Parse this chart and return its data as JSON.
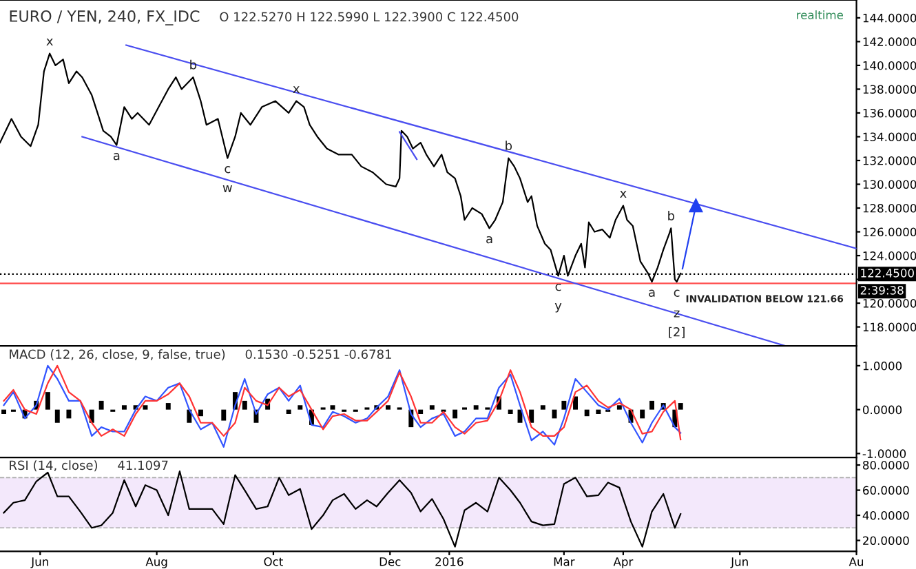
{
  "chart_data": [
    {
      "type": "line",
      "title": "EURO / YEN, 240, FX_IDC",
      "subtitle": "O 122.5270 H 122.5990 L 122.3900 C 122.4500",
      "xlim": [
        "2015-05-11",
        "2016-08-01"
      ],
      "ylim": [
        116.4,
        145.5
      ],
      "yticks": [
        {
          "value": 118,
          "label": "118.0000"
        },
        {
          "value": 120,
          "label": "120.0000"
        },
        {
          "value": 122,
          "label": null
        },
        {
          "value": 124,
          "label": "124.0000"
        },
        {
          "value": 126,
          "label": "126.0000"
        },
        {
          "value": 128,
          "label": "128.0000"
        },
        {
          "value": 130,
          "label": "130.0000"
        },
        {
          "value": 132,
          "label": "132.0000"
        },
        {
          "value": 134,
          "label": "134.0000"
        },
        {
          "value": 136,
          "label": "136.0000"
        },
        {
          "value": 138,
          "label": "138.0000"
        },
        {
          "value": 140,
          "label": "140.0000"
        },
        {
          "value": 142,
          "label": "142.0000"
        },
        {
          "value": 144,
          "label": "144.0000"
        }
      ],
      "tick_labels": "y",
      "grid": false,
      "legend": false,
      "series": [
        {
          "color": "#000000",
          "x": [
            "2015-05-11",
            "2015-05-17",
            "2015-05-22",
            "2015-05-27",
            "2015-05-31",
            "2015-06-03",
            "2015-06-06",
            "2015-06-09",
            "2015-06-13",
            "2015-06-16",
            "2015-06-20",
            "2015-06-23",
            "2015-06-28",
            "2015-07-01",
            "2015-07-04",
            "2015-07-08",
            "2015-07-11",
            "2015-07-15",
            "2015-07-19",
            "2015-07-22",
            "2015-07-28",
            "2015-08-02",
            "2015-08-07",
            "2015-08-11",
            "2015-08-14",
            "2015-08-20",
            "2015-08-24",
            "2015-08-27",
            "2015-09-02",
            "2015-09-07",
            "2015-09-11",
            "2015-09-14",
            "2015-09-19",
            "2015-09-25",
            "2015-10-02",
            "2015-10-09",
            "2015-10-13",
            "2015-10-17",
            "2015-10-20",
            "2015-10-24",
            "2015-10-29",
            "2015-11-04",
            "2015-11-11",
            "2015-11-16",
            "2015-11-22",
            "2015-11-29",
            "2015-12-04",
            "2015-12-06",
            "2015-12-07",
            "2015-12-10",
            "2015-12-13",
            "2015-12-17",
            "2015-12-20",
            "2015-12-24",
            "2015-12-28",
            "2015-12-31",
            "2016-01-04",
            "2016-01-07",
            "2016-01-09",
            "2016-01-13",
            "2016-01-18",
            "2016-01-22",
            "2016-01-25",
            "2016-01-29",
            "2016-02-01",
            "2016-02-04",
            "2016-02-07",
            "2016-02-11",
            "2016-02-13",
            "2016-02-16",
            "2016-02-20",
            "2016-02-23",
            "2016-02-27",
            "2016-03-01",
            "2016-03-03",
            "2016-03-07",
            "2016-03-10",
            "2016-03-12",
            "2016-03-14",
            "2016-03-17",
            "2016-03-21",
            "2016-03-25",
            "2016-03-28",
            "2016-04-01",
            "2016-04-03",
            "2016-04-06",
            "2016-04-10",
            "2016-04-14",
            "2016-04-16",
            "2016-04-19",
            "2016-04-22",
            "2016-04-25",
            "2016-04-26",
            "2016-04-28",
            "2016-04-29",
            "2016-05-01"
          ],
          "values": [
            133.5,
            135.5,
            134,
            133.2,
            135,
            139.5,
            141,
            140,
            140.5,
            138.5,
            139.5,
            139,
            137.5,
            136,
            134.5,
            134,
            133.3,
            136.5,
            135.5,
            136,
            135,
            136.5,
            138,
            139,
            138,
            139,
            137,
            135,
            135.5,
            132.2,
            134,
            136,
            135,
            136.5,
            137,
            136,
            137,
            136.5,
            135,
            134,
            133,
            132.5,
            132.5,
            131.5,
            131,
            130,
            129.8,
            130.5,
            134.5,
            134,
            133,
            133.5,
            132.5,
            131.5,
            132.5,
            131,
            130.5,
            129,
            127,
            128,
            127.5,
            126.3,
            127,
            128.5,
            132.2,
            131.5,
            130.5,
            128.5,
            129,
            126.5,
            125,
            124.5,
            122.3,
            124,
            122.3,
            124,
            125,
            123,
            126.8,
            126,
            126.2,
            125.5,
            127,
            128.2,
            127,
            126.5,
            123.5,
            122.5,
            121.8,
            123,
            124.5,
            125.8,
            126.3,
            122,
            121.8,
            122.5
          ]
        },
        {
          "color": "#4a4ef0",
          "x": [
            "2015-07-16",
            "2016-08-01"
          ],
          "values": [
            141.7,
            124.6
          ]
        },
        {
          "color": "#4a4ef0",
          "x": [
            "2015-06-23",
            "2016-06-25"
          ],
          "values": [
            134.0,
            116.4
          ]
        },
        {
          "color": "#4a4ef0",
          "x": [
            "2015-12-06",
            "2015-12-15"
          ],
          "values": [
            134.4,
            132.1
          ]
        },
        {
          "color": "#2040f0",
          "x": [
            "2016-05-02",
            "2016-05-09"
          ],
          "values": [
            122.9,
            128.2
          ],
          "marker": "triangle"
        }
      ],
      "ref_lines": [
        {
          "axis": "y",
          "value": 122.45,
          "label": "122.4500",
          "color": "#000000",
          "line_style": "dotted"
        },
        {
          "axis": "y",
          "value": 121.66,
          "label": "INVALIDATION BELOW 121.66",
          "color": "#ff5050",
          "line_style": "solid"
        }
      ],
      "annotations": [
        "realtime",
        "2:39:38",
        {
          "text": "x",
          "x": "2015-06-06",
          "y": 141
        },
        {
          "text": "b",
          "x": "2015-08-20",
          "y": 139
        },
        {
          "text": "x",
          "x": "2015-10-13",
          "y": 137
        },
        {
          "text": "a",
          "x": "2015-07-11",
          "y": 133.3
        },
        {
          "text": "c",
          "x": "2015-09-07",
          "y": 132.2
        },
        {
          "text": "w",
          "x": "2015-09-07",
          "y": 132.2
        },
        {
          "text": "b",
          "x": "2016-02-01",
          "y": 132.2
        },
        {
          "text": "a",
          "x": "2016-01-22",
          "y": 126.3
        },
        {
          "text": "c",
          "x": "2016-02-27",
          "y": 122.3
        },
        {
          "text": "y",
          "x": "2016-02-27",
          "y": 122.3
        },
        {
          "text": "x",
          "x": "2016-04-01",
          "y": 128.2
        },
        {
          "text": "b",
          "x": "2016-04-26",
          "y": 126.3
        },
        {
          "text": "a",
          "x": "2016-04-16",
          "y": 121.8
        },
        {
          "text": "c",
          "x": "2016-04-29",
          "y": 121.8
        },
        {
          "text": "z",
          "x": "2016-04-29",
          "y": 119.1
        },
        {
          "text": "[2]",
          "x": "2016-04-29",
          "y": 119.1
        }
      ]
    },
    {
      "type": "line",
      "title": "MACD (12, 26, close, 9, false, true)",
      "subtitle": "0.1530 -0.5251 -0.6781",
      "xlim": [
        "2015-05-11",
        "2016-08-01"
      ],
      "ylim": [
        -1.09,
        1.45
      ],
      "yticks": [
        {
          "value": -1,
          "label": "-1.0000"
        },
        {
          "value": 0,
          "label": "0.0000"
        },
        {
          "value": 1,
          "label": "1.0000"
        }
      ],
      "tick_labels": "y",
      "grid": false,
      "legend": false,
      "x": [
        "2015-05-13",
        "2015-05-18",
        "2015-05-24",
        "2015-05-30",
        "2015-06-05",
        "2015-06-10",
        "2015-06-16",
        "2015-06-22",
        "2015-06-28",
        "2015-07-03",
        "2015-07-09",
        "2015-07-15",
        "2015-07-21",
        "2015-07-26",
        "2015-08-01",
        "2015-08-07",
        "2015-08-13",
        "2015-08-18",
        "2015-08-24",
        "2015-08-30",
        "2015-09-05",
        "2015-09-11",
        "2015-09-16",
        "2015-09-22",
        "2015-09-28",
        "2015-10-04",
        "2015-10-09",
        "2015-10-15",
        "2015-10-21",
        "2015-10-27",
        "2015-11-01",
        "2015-11-07",
        "2015-11-13",
        "2015-11-19",
        "2015-11-24",
        "2015-11-30",
        "2015-12-06",
        "2015-12-12",
        "2015-12-17",
        "2015-12-23",
        "2015-12-29",
        "2016-01-04",
        "2016-01-09",
        "2016-01-15",
        "2016-01-21",
        "2016-01-27",
        "2016-02-02",
        "2016-02-07",
        "2016-02-13",
        "2016-02-19",
        "2016-02-25",
        "2016-03-01",
        "2016-03-07",
        "2016-03-13",
        "2016-03-19",
        "2016-03-24",
        "2016-03-30",
        "2016-04-05",
        "2016-04-11",
        "2016-04-16",
        "2016-04-22",
        "2016-04-28",
        "2016-05-01"
      ],
      "series": [
        {
          "type": "bar",
          "color": "#000000",
          "values": [
            -0.1,
            -0.05,
            -0.2,
            0.2,
            0.4,
            -0.3,
            -0.2,
            0,
            -0.3,
            0.2,
            -0.05,
            0.1,
            0.1,
            0.1,
            0,
            0.15,
            0,
            -0.3,
            -0.15,
            0,
            -0.25,
            0.4,
            0.2,
            -0.3,
            0.25,
            0,
            -0.1,
            0.1,
            -0.35,
            0.05,
            0.1,
            -0.05,
            -0.05,
            0.05,
            0.1,
            0.1,
            0.05,
            -0.4,
            -0.1,
            0.1,
            -0.05,
            -0.2,
            0.05,
            0.1,
            0.05,
            0.3,
            -0.1,
            -0.3,
            -0.3,
            0.1,
            -0.2,
            0.2,
            0.3,
            -0.15,
            -0.1,
            -0.05,
            0.1,
            -0.3,
            -0.2,
            0.2,
            0.15,
            -0.4,
            0.15
          ]
        },
        {
          "color": "#3355ff",
          "values": [
            0.1,
            0.4,
            -0.2,
            0.1,
            1.0,
            0.7,
            0.2,
            0.2,
            -0.6,
            -0.4,
            -0.5,
            -0.5,
            0.0,
            0.3,
            0.2,
            0.5,
            0.6,
            0.0,
            -0.45,
            -0.3,
            -0.85,
            0.1,
            0.7,
            -0.1,
            0.35,
            0.5,
            0.2,
            0.55,
            -0.35,
            -0.4,
            -0.05,
            -0.15,
            -0.3,
            -0.2,
            0.05,
            0.3,
            0.9,
            -0.1,
            -0.4,
            -0.2,
            -0.1,
            -0.6,
            -0.5,
            -0.2,
            -0.2,
            0.5,
            0.8,
            0.1,
            -0.7,
            -0.5,
            -0.8,
            -0.2,
            0.7,
            0.4,
            0.1,
            0.0,
            0.25,
            -0.3,
            -0.75,
            -0.3,
            0.1,
            -0.4,
            -0.53
          ]
        },
        {
          "color": "#ff3333",
          "values": [
            0.2,
            0.45,
            0.0,
            -0.1,
            0.6,
            1.0,
            0.4,
            0.2,
            -0.3,
            -0.6,
            -0.45,
            -0.6,
            -0.1,
            0.2,
            0.2,
            0.35,
            0.6,
            0.3,
            -0.3,
            -0.3,
            -0.6,
            -0.3,
            0.5,
            0.2,
            0.1,
            0.5,
            0.3,
            0.45,
            0.0,
            -0.45,
            -0.15,
            -0.1,
            -0.25,
            -0.25,
            -0.05,
            0.2,
            0.85,
            0.3,
            -0.3,
            -0.3,
            -0.05,
            -0.4,
            -0.55,
            -0.3,
            -0.25,
            0.2,
            0.9,
            0.4,
            -0.4,
            -0.6,
            -0.6,
            -0.4,
            0.4,
            0.55,
            0.2,
            0.05,
            0.15,
            0.0,
            -0.55,
            -0.5,
            -0.05,
            0.2,
            -0.68
          ]
        }
      ]
    },
    {
      "type": "line",
      "title": "RSI (14, close)",
      "subtitle": "41.1097",
      "xlim": [
        "2015-05-11",
        "2016-08-01"
      ],
      "ylim": [
        11.3,
        86
      ],
      "yticks": [
        {
          "value": 20,
          "label": "20.0000"
        },
        {
          "value": 40,
          "label": "40.0000"
        },
        {
          "value": 60,
          "label": "60.0000"
        },
        {
          "value": 80,
          "label": "80.0000"
        }
      ],
      "xticks": [
        {
          "value": "2015-06-01",
          "label": "Jun"
        },
        {
          "value": "2015-08-01",
          "label": "Aug"
        },
        {
          "value": "2015-10-01",
          "label": "Oct"
        },
        {
          "value": "2015-12-01",
          "label": "Dec"
        },
        {
          "value": "2016-01-01",
          "label": "2016"
        },
        {
          "value": "2016-03-01",
          "label": "Mar"
        },
        {
          "value": "2016-04-01",
          "label": "Apr"
        },
        {
          "value": "2016-06-01",
          "label": "Jun"
        },
        {
          "value": "2016-08-01",
          "label": "Au"
        }
      ],
      "grid": false,
      "legend": false,
      "bands": [
        {
          "axis": "y",
          "from": 30,
          "to": 70,
          "color": "#f3e8fb"
        }
      ],
      "ref_lines": [
        {
          "axis": "y",
          "value": 30,
          "color": "#aaaaaa",
          "line_style": "dashed"
        },
        {
          "axis": "y",
          "value": 70,
          "color": "#aaaaaa",
          "line_style": "dashed"
        }
      ],
      "x": [
        "2015-05-13",
        "2015-05-18",
        "2015-05-24",
        "2015-05-30",
        "2015-06-05",
        "2015-06-10",
        "2015-06-16",
        "2015-06-22",
        "2015-06-28",
        "2015-07-03",
        "2015-07-09",
        "2015-07-15",
        "2015-07-21",
        "2015-07-26",
        "2015-08-01",
        "2015-08-07",
        "2015-08-13",
        "2015-08-18",
        "2015-08-24",
        "2015-08-30",
        "2015-09-05",
        "2015-09-11",
        "2015-09-16",
        "2015-09-22",
        "2015-09-28",
        "2015-10-04",
        "2015-10-09",
        "2015-10-15",
        "2015-10-21",
        "2015-10-27",
        "2015-11-01",
        "2015-11-07",
        "2015-11-13",
        "2015-11-19",
        "2015-11-24",
        "2015-11-30",
        "2015-12-06",
        "2015-12-12",
        "2015-12-17",
        "2015-12-23",
        "2015-12-29",
        "2016-01-04",
        "2016-01-09",
        "2016-01-15",
        "2016-01-21",
        "2016-01-27",
        "2016-02-02",
        "2016-02-07",
        "2016-02-13",
        "2016-02-19",
        "2016-02-25",
        "2016-03-01",
        "2016-03-07",
        "2016-03-13",
        "2016-03-19",
        "2016-03-24",
        "2016-03-30",
        "2016-04-05",
        "2016-04-11",
        "2016-04-16",
        "2016-04-22",
        "2016-04-28",
        "2016-05-01"
      ],
      "series": [
        {
          "color": "#000000",
          "values": [
            42,
            50,
            52,
            67,
            74,
            55,
            55,
            43,
            30,
            32,
            42,
            68,
            47,
            64,
            60,
            40,
            75,
            45,
            45,
            45,
            33,
            72,
            60,
            45,
            47,
            70,
            56,
            61,
            29,
            40,
            52,
            57,
            45,
            52,
            47,
            58,
            68,
            58,
            43,
            53,
            37,
            15,
            44,
            50,
            43,
            70,
            60,
            50,
            35,
            32,
            33,
            65,
            70,
            55,
            56,
            66,
            62,
            35,
            15,
            43,
            57,
            30,
            41
          ]
        }
      ]
    }
  ]
}
